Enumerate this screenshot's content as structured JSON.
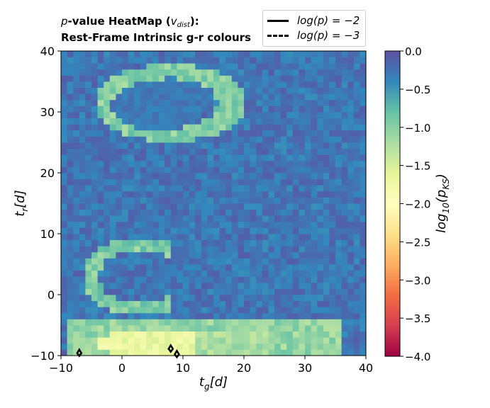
{
  "title": {
    "line1_p": "p",
    "line1_main": "-value HeatMap (",
    "line1_sub": "v",
    "line1_subscript": "dist",
    "line1_end": "):",
    "line2": "Rest-Frame Intrinsic g-r colours"
  },
  "legend": {
    "entries": [
      {
        "label": "log(p) = −2",
        "style": "solid"
      },
      {
        "label": "log(p) = −3",
        "style": "dashed"
      }
    ]
  },
  "chart_data": {
    "type": "heatmap",
    "title": "p-value HeatMap (v_dist): Rest-Frame Intrinsic g-r colours",
    "xlabel": "t_g[d]",
    "ylabel": "t_r[d]",
    "xlim": [
      -10,
      40
    ],
    "ylim": [
      -10,
      40
    ],
    "xticks": [
      "−10",
      "0",
      "10",
      "20",
      "30",
      "40"
    ],
    "yticks": [
      "−10",
      "0",
      "10",
      "20",
      "30",
      "40"
    ],
    "colorbar": {
      "label": "log10(p_KS)",
      "range": [
        -4.0,
        0.0
      ],
      "ticks": [
        "0.0",
        "−0.5",
        "−1.0",
        "−1.5",
        "−2.0",
        "−2.5",
        "−3.0",
        "−3.5",
        "−4.0"
      ],
      "colormap": "Spectral"
    },
    "regions": [
      {
        "name": "background",
        "value": -0.1
      },
      {
        "name": "upper-left ring",
        "cx": 8,
        "cy": 31.5,
        "rx": 11.5,
        "ry": 6,
        "value": -0.75
      },
      {
        "name": "upper-left core",
        "cx": 6,
        "cy": 31,
        "rx": 8,
        "ry": 4,
        "value": -0.2
      },
      {
        "name": "mid-left ring",
        "cx": 3,
        "cy": 3,
        "rx": 9,
        "ry": 6,
        "value": -0.7
      },
      {
        "name": "bottom band",
        "ymax": -3.5,
        "xmin": -9,
        "xmax": 40,
        "value": -0.85
      },
      {
        "name": "bottom peak",
        "cx": 6,
        "cy": -8,
        "rx": 10,
        "ry": 2.5,
        "value": -1.5
      }
    ],
    "contours": [
      {
        "level": -2,
        "style": "solid",
        "points": [
          [
            -7,
            -9.6
          ],
          [
            8,
            -8.9
          ],
          [
            9,
            -9.8
          ]
        ]
      },
      {
        "level": -3,
        "style": "dashed",
        "points": []
      }
    ],
    "grid": false,
    "legend_position": "top-right"
  }
}
